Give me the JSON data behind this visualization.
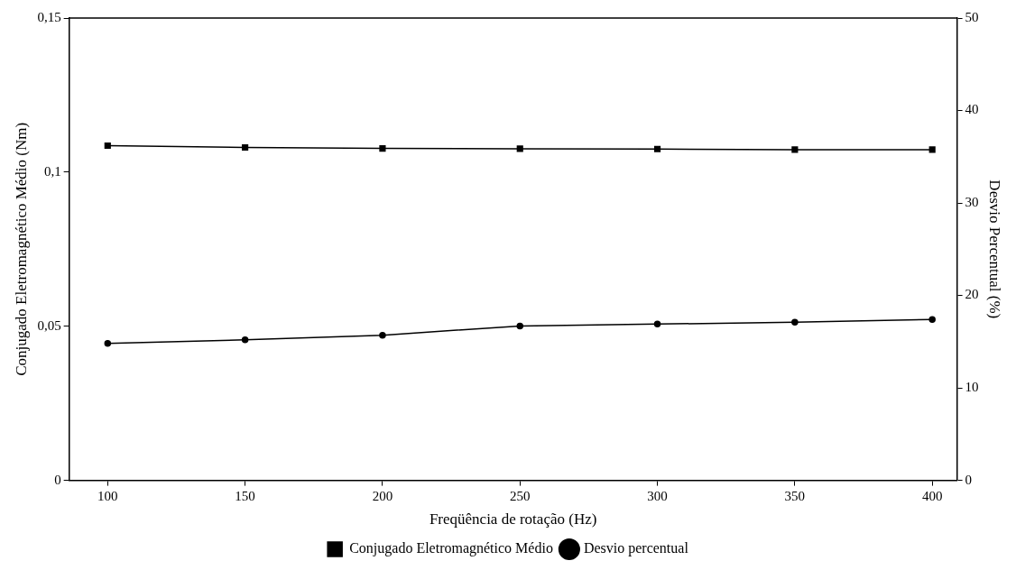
{
  "chart_data": {
    "type": "line",
    "xlabel": "Freqüência de rotação (Hz)",
    "ylabel": "Conjugado Eletromagnético Médio (Nm)",
    "y2label": "Desvio Percentual (%)",
    "x": [
      100,
      150,
      200,
      250,
      300,
      350,
      400
    ],
    "xlim": [
      86,
      409
    ],
    "xticks": [
      100,
      150,
      200,
      250,
      300,
      350,
      400
    ],
    "ylim": [
      0,
      0.15
    ],
    "yticks": [
      {
        "value": 0,
        "label": "0"
      },
      {
        "value": 0.05,
        "label": "0,05"
      },
      {
        "value": 0.1,
        "label": "0,1"
      },
      {
        "value": 0.15,
        "label": "0,15"
      }
    ],
    "y2lim": [
      0,
      50
    ],
    "y2ticks": [
      0,
      10,
      20,
      30,
      40,
      50
    ],
    "series": [
      {
        "name": "Conjugado Eletromagnético Médio",
        "color": "#000000",
        "marker": "square",
        "values": [
          0.1086,
          0.108,
          0.1077,
          0.1076,
          0.1075,
          0.1073,
          0.1073
        ]
      },
      {
        "name": "Desvio percentual",
        "color": "#000000",
        "marker": "circle",
        "axis": "y2",
        "values": [
          14.8,
          15.2,
          15.7,
          16.7,
          16.9,
          17.1,
          17.4
        ]
      }
    ],
    "grid": false,
    "legend": "bottom",
    "line_style": "solid"
  }
}
